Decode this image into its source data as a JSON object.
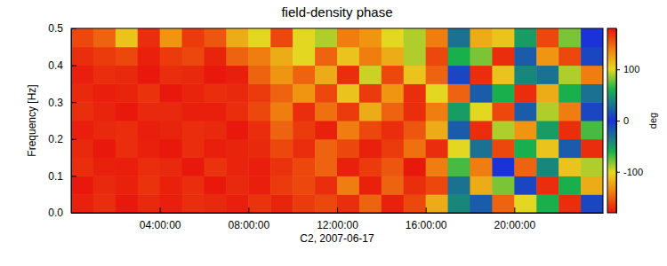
{
  "chart_data": {
    "type": "heatmap",
    "title": "field-density phase",
    "x_label": "C2, 2007-06-17",
    "y_label": "Frequency [Hz]",
    "colorbar_label": "deg",
    "xlim": [
      0,
      24
    ],
    "xticks": [
      {
        "value": 4,
        "label": "04:00:00"
      },
      {
        "value": 8,
        "label": "08:00:00"
      },
      {
        "value": 12,
        "label": "12:00:00"
      },
      {
        "value": 16,
        "label": "16:00:00"
      },
      {
        "value": 20,
        "label": "20:00:00"
      }
    ],
    "ylim": [
      0,
      0.5
    ],
    "yticks": [
      {
        "value": 0,
        "label": "0.0"
      },
      0.1,
      0.2,
      0.3,
      0.4,
      0.5
    ],
    "clim": [
      -180,
      180
    ],
    "cticks": [
      -100,
      0,
      100
    ],
    "x": [
      0.5,
      1.5,
      2.5,
      3.5,
      4.5,
      5.5,
      6.5,
      7.5,
      8.5,
      9.5,
      10.5,
      11.5,
      12.5,
      13.5,
      14.5,
      15.5,
      16.5,
      17.5,
      18.5,
      19.5,
      20.5,
      21.5,
      22.5,
      23.5
    ],
    "y": [
      0.025,
      0.075,
      0.125,
      0.175,
      0.225,
      0.275,
      0.325,
      0.375,
      0.425,
      0.475
    ],
    "z": [
      [
        175,
        -170,
        178,
        172,
        -176,
        170,
        -172,
        176,
        -168,
        174,
        165,
        -160,
        170,
        150,
        -175,
        160,
        120,
        -40,
        20,
        150,
        -100,
        60,
        -170,
        10
      ],
      [
        -178,
        172,
        -175,
        168,
        175,
        -170,
        178,
        -172,
        176,
        -165,
        160,
        -170,
        140,
        175,
        -150,
        170,
        -160,
        30,
        -120,
        80,
        -10,
        170,
        -60,
        120
      ],
      [
        170,
        -175,
        176,
        -170,
        172,
        178,
        -168,
        174,
        -176,
        168,
        -160,
        150,
        175,
        -165,
        155,
        178,
        -140,
        -70,
        140,
        0,
        -150,
        40,
        110,
        -90
      ],
      [
        -172,
        178,
        -170,
        175,
        -178,
        170,
        176,
        -174,
        172,
        -160,
        170,
        -150,
        160,
        -175,
        165,
        -145,
        170,
        100,
        -30,
        -160,
        60,
        -110,
        20,
        170
      ],
      [
        176,
        -172,
        170,
        -176,
        174,
        -170,
        172,
        178,
        -170,
        150,
        -165,
        175,
        -140,
        160,
        -170,
        155,
        -120,
        -20,
        170,
        -90,
        130,
        -50,
        -170,
        70
      ],
      [
        -170,
        174,
        -178,
        172,
        -172,
        176,
        -176,
        170,
        -160,
        140,
        170,
        -145,
        165,
        -120,
        150,
        -170,
        140,
        50,
        -100,
        160,
        -20,
        90,
        -140,
        10
      ],
      [
        172,
        -176,
        174,
        -168,
        178,
        -174,
        170,
        -172,
        165,
        -150,
        -130,
        160,
        110,
        -165,
        130,
        170,
        -100,
        -150,
        20,
        -60,
        170,
        -120,
        60,
        -30
      ],
      [
        -176,
        170,
        -172,
        178,
        -170,
        172,
        -178,
        176,
        -150,
        130,
        150,
        -120,
        170,
        95,
        -160,
        -110,
        150,
        10,
        -170,
        110,
        -40,
        30,
        -90,
        140
      ],
      [
        170,
        -165,
        160,
        -175,
        165,
        -160,
        174,
        -150,
        140,
        -120,
        -100,
        150,
        110,
        -140,
        120,
        -90,
        -160,
        -60,
        80,
        -170,
        20,
        -130,
        160,
        -10
      ],
      [
        -160,
        150,
        -110,
        170,
        -130,
        165,
        -155,
        120,
        -100,
        160,
        100,
        -90,
        -140,
        130,
        -100,
        90,
        140,
        -30,
        120,
        -110,
        50,
        160,
        -80,
        0
      ]
    ]
  }
}
